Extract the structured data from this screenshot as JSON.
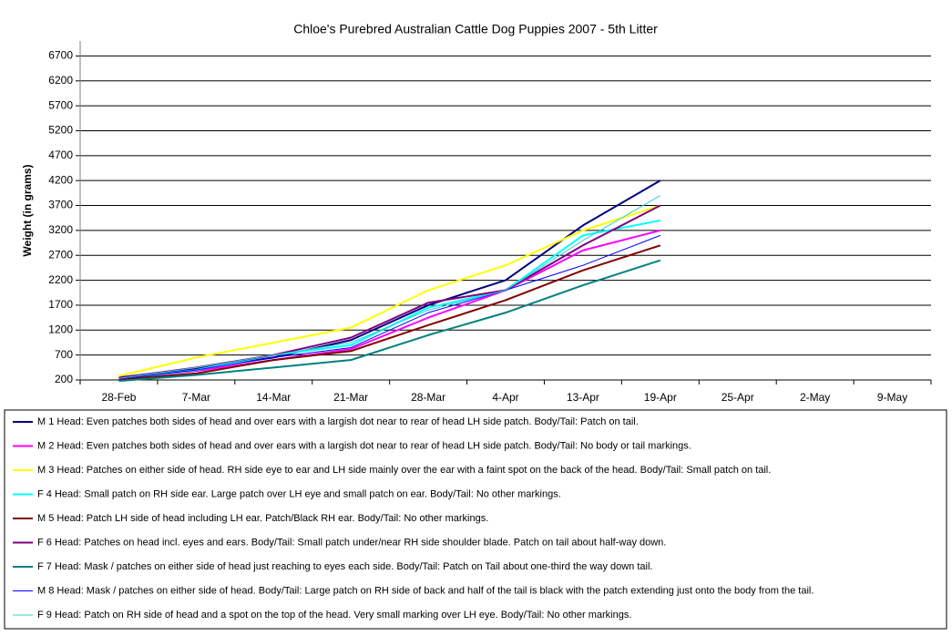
{
  "chart_data": {
    "type": "line",
    "title": "Chloe's Purebred Australian Cattle Dog Puppies 2007 - 5th Litter",
    "y_label": "Weight (in grams)",
    "categories": [
      "28-Feb",
      "7-Mar",
      "14-Mar",
      "21-Mar",
      "28-Mar",
      "4-Apr",
      "13-Apr",
      "19-Apr",
      "25-Apr",
      "2-May",
      "9-May"
    ],
    "ylim": [
      200,
      7000
    ],
    "yticks": [
      200,
      700,
      1200,
      1700,
      2200,
      2700,
      3200,
      3700,
      4200,
      4700,
      5200,
      5700,
      6200,
      6700
    ],
    "grid": true,
    "legend": "bottom",
    "series": [
      {
        "name": "M 1 Head: Even patches both sides of head and over ears with a largish dot near to rear of head LH side patch. Body/Tail: Patch on tail.",
        "color": "#000080",
        "line_width": 2,
        "values": [
          250,
          430,
          650,
          1000,
          1700,
          2200,
          3300,
          4200,
          null,
          null,
          null
        ]
      },
      {
        "name": "M 2 Head: Even patches both sides of head and over ears with a largish dot near to rear of head LH side patch. Body/Tail: No body or tail markings.",
        "color": "#ff00ff",
        "line_width": 2,
        "values": [
          230,
          380,
          600,
          820,
          1450,
          2000,
          2800,
          3200,
          null,
          null,
          null
        ]
      },
      {
        "name": "M 3 Head: Patches on either side of head. RH side eye to ear and LH side mainly over the ear with a faint spot on the back of the head. Body/Tail: Small patch on tail.",
        "color": "#ffff00",
        "line_width": 2,
        "values": [
          280,
          650,
          950,
          1250,
          2000,
          2500,
          3200,
          3700,
          null,
          null,
          null
        ]
      },
      {
        "name": "F 4 Head: Small patch on RH side ear. Large patch over LH eye and small patch on ear. Body/Tail: No other markings.",
        "color": "#00ffff",
        "line_width": 2,
        "values": [
          220,
          400,
          700,
          900,
          1650,
          2000,
          3100,
          3400,
          null,
          null,
          null
        ]
      },
      {
        "name": "M 5 Head: Patch LH side of head including LH ear. Patch/Black RH ear. Body/Tail: No other markings.",
        "color": "#800000",
        "line_width": 2,
        "values": [
          210,
          330,
          600,
          780,
          1300,
          1800,
          2400,
          2900,
          null,
          null,
          null
        ]
      },
      {
        "name": "F 6 Head: Patches on head incl. eyes and ears. Body/Tail: Small patch under/near RH side shoulder blade. Patch on tail about half-way down.",
        "color": "#800080",
        "line_width": 2,
        "values": [
          240,
          450,
          700,
          1050,
          1750,
          2000,
          2900,
          3700,
          null,
          null,
          null
        ]
      },
      {
        "name": "F 7 Head: Mask / patches on either side of head just reaching to eyes each side. Body/Tail: Patch on Tail about one-third the way down tail.",
        "color": "#008080",
        "line_width": 2,
        "values": [
          180,
          300,
          450,
          600,
          1100,
          1550,
          2100,
          2600,
          null,
          null,
          null
        ]
      },
      {
        "name": "M 8 Head: Mask / patches on either side of head. Body/Tail: Large patch on RH side of back and half of the tail is black with the patch extending just onto the body from the tail.",
        "color": "#0000ff",
        "line_width": 1,
        "values": [
          220,
          400,
          650,
          850,
          1550,
          2000,
          2500,
          3100,
          null,
          null,
          null
        ]
      },
      {
        "name": "F 9 Head: Patch on RH side of head and a spot on the top of the head. Very small marking over LH eye. Body/Tail: No other markings.",
        "color": "#33cccc",
        "line_width": 1,
        "values": [
          230,
          450,
          700,
          950,
          1600,
          2000,
          3000,
          3900,
          null,
          null,
          null
        ]
      }
    ]
  }
}
